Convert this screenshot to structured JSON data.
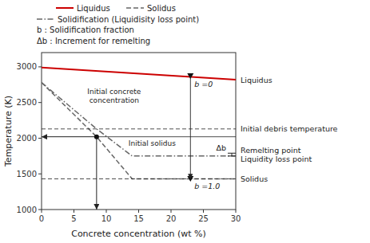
{
  "chart_data": {
    "type": "line",
    "xlabel": "Concrete concentration (wt %)",
    "ylabel": "Temperature (K)",
    "xlim": [
      0,
      30
    ],
    "ylim": [
      1000,
      3200
    ],
    "xticks": [
      0,
      5,
      10,
      15,
      20,
      25,
      30
    ],
    "yticks": [
      1000,
      1500,
      2000,
      2500,
      3000
    ],
    "legend": "top",
    "series": [
      {
        "name": "Liquidus",
        "color": "#cc0000",
        "line_style": "solid",
        "x": [
          0,
          30
        ],
        "values": [
          2990,
          2820
        ]
      },
      {
        "name": "Solidus",
        "color": "#666666",
        "line_style": "dashed",
        "x": [
          0,
          8.5,
          14,
          30
        ],
        "values": [
          2780,
          2020,
          1430,
          1430
        ]
      },
      {
        "name": "Solidification (Liquidisity loss point)",
        "color": "#666666",
        "line_style": "dashdot",
        "x": [
          0,
          8.5,
          14,
          30
        ],
        "values": [
          2780,
          2130,
          1750,
          1750
        ]
      }
    ],
    "annotations": [
      {
        "type": "arrow_down",
        "x": 8.5,
        "y": 2020,
        "text": "Initial concrete\nconcentration"
      },
      {
        "type": "arrow_left",
        "x": 8.5,
        "y": 2020,
        "marker": "circle",
        "text": "Initial solidus"
      },
      {
        "type": "hline",
        "y": 2130,
        "text": "Initial debris temperature"
      },
      {
        "type": "hline",
        "y": 1430,
        "text": "Solidus"
      },
      {
        "type": "point",
        "marker": "triangle-down",
        "x": 23,
        "y": 2870,
        "text": "b =0"
      },
      {
        "type": "point",
        "marker": "triangle-down",
        "x": 23,
        "y": 1430,
        "text": "b =1.0"
      },
      {
        "type": "arrow",
        "x": 23,
        "y": [
          2870,
          1430
        ]
      },
      {
        "type": "bracket",
        "y": [
          1790,
          1750
        ],
        "text": "Δb",
        "labels": [
          "Remelting point",
          "Liquidity loss point"
        ]
      },
      {
        "type": "end_label",
        "text": "Liquidus"
      }
    ],
    "notes": [
      "b : Solidification fraction",
      "Δb : Increment for remelting"
    ]
  }
}
